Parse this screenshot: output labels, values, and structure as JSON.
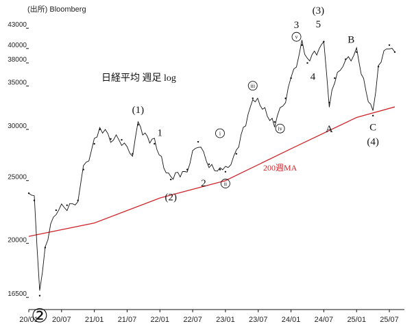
{
  "source_label": "(出所) Bloomberg",
  "chart_data": {
    "type": "line",
    "title": "日経平均 週足 log",
    "x_axis": {
      "ticks": [
        "20/01",
        "20/07",
        "21/01",
        "21/07",
        "22/01",
        "22/07",
        "23/01",
        "23/07",
        "24/01",
        "24/07",
        "25/01",
        "25/07"
      ],
      "range": [
        "2020/01",
        "2025/08"
      ]
    },
    "y_axis": {
      "scale": "log",
      "ticks": [
        16500,
        20000,
        25000,
        30000,
        35000,
        38000,
        40000,
        43000
      ],
      "range": [
        15800,
        45500
      ]
    },
    "grid": false,
    "series": [
      {
        "kind": "weekly-price",
        "color": "#111111",
        "points": [
          {
            "t": "2020/01",
            "v": 23900
          },
          {
            "t": "2020/02",
            "v": 23300
          },
          {
            "t": "2020/03",
            "v": 16600
          },
          {
            "t": "2020/04",
            "v": 19700
          },
          {
            "t": "2020/06",
            "v": 22500
          },
          {
            "t": "2020/08",
            "v": 22900
          },
          {
            "t": "2020/10",
            "v": 23300
          },
          {
            "t": "2020/11",
            "v": 26000
          },
          {
            "t": "2021/01",
            "v": 28500
          },
          {
            "t": "2021/02",
            "v": 30000
          },
          {
            "t": "2021/04",
            "v": 29000
          },
          {
            "t": "2021/06",
            "v": 28900
          },
          {
            "t": "2021/08",
            "v": 27500
          },
          {
            "t": "2021/09",
            "v": 30500
          },
          {
            "t": "2021/12",
            "v": 28500
          },
          {
            "t": "2022/03",
            "v": 25100
          },
          {
            "t": "2022/06",
            "v": 26000
          },
          {
            "t": "2022/08",
            "v": 28700
          },
          {
            "t": "2022/10",
            "v": 26500
          },
          {
            "t": "2022/12",
            "v": 26000
          },
          {
            "t": "2023/01",
            "v": 25800
          },
          {
            "t": "2023/03",
            "v": 27500
          },
          {
            "t": "2023/06",
            "v": 33500
          },
          {
            "t": "2023/10",
            "v": 30800
          },
          {
            "t": "2023/12",
            "v": 33500
          },
          {
            "t": "2024/01",
            "v": 36000
          },
          {
            "t": "2024/03",
            "v": 40500
          },
          {
            "t": "2024/04",
            "v": 38000
          },
          {
            "t": "2024/07",
            "v": 41000
          },
          {
            "t": "2024/08",
            "v": 33000
          },
          {
            "t": "2024/09",
            "v": 36000
          },
          {
            "t": "2024/11",
            "v": 38500
          },
          {
            "t": "2025/01",
            "v": 39500
          },
          {
            "t": "2025/04",
            "v": 31500
          },
          {
            "t": "2025/05",
            "v": 37500
          },
          {
            "t": "2025/07",
            "v": 40500
          },
          {
            "t": "2025/08",
            "v": 39500
          }
        ]
      },
      {
        "name": "200週MA",
        "color": "#d0262c",
        "points": [
          {
            "t": "2020/01",
            "v": 20500
          },
          {
            "t": "2021/01",
            "v": 21500
          },
          {
            "t": "2022/01",
            "v": 23500
          },
          {
            "t": "2023/01",
            "v": 25000
          },
          {
            "t": "2024/01",
            "v": 28000
          },
          {
            "t": "2025/01",
            "v": 31300
          },
          {
            "t": "2025/08",
            "v": 32500
          }
        ]
      }
    ],
    "annotations": [
      {
        "text": "②",
        "t": "2020/03",
        "v": 15100,
        "style": "big-circle"
      },
      {
        "text": "(1)",
        "t": "2021/09",
        "v": 31800,
        "style": "wave"
      },
      {
        "text": "1",
        "t": "2022/01",
        "v": 29300,
        "style": "wave"
      },
      {
        "text": "(2)",
        "t": "2022/03",
        "v": 23300,
        "style": "wave"
      },
      {
        "text": "2",
        "t": "2022/09",
        "v": 24500,
        "style": "wave"
      },
      {
        "text": "i",
        "t": "2022/12",
        "v": 29300,
        "style": "circle"
      },
      {
        "text": "ii",
        "t": "2023/01",
        "v": 24500,
        "style": "circle"
      },
      {
        "text": "iii",
        "t": "2023/06",
        "v": 34700,
        "style": "circle"
      },
      {
        "text": "iv",
        "t": "2023/11",
        "v": 29800,
        "style": "circle"
      },
      {
        "text": "3",
        "t": "2024/02",
        "v": 43000,
        "style": "wave"
      },
      {
        "text": "v",
        "t": "2024/02",
        "v": 41300,
        "style": "circle"
      },
      {
        "text": "(3)",
        "t": "2024/06",
        "v": 45300,
        "style": "wave"
      },
      {
        "text": "5",
        "t": "2024/06",
        "v": 43100,
        "style": "wave"
      },
      {
        "text": "4",
        "t": "2024/05",
        "v": 35800,
        "style": "wave"
      },
      {
        "text": "A",
        "t": "2024/08",
        "v": 29700,
        "style": "wave"
      },
      {
        "text": "B",
        "t": "2024/12",
        "v": 40800,
        "style": "wave"
      },
      {
        "text": "C",
        "t": "2025/04",
        "v": 29900,
        "style": "wave"
      },
      {
        "text": "(4)",
        "t": "2025/04",
        "v": 28400,
        "style": "wave"
      }
    ],
    "series_label": {
      "text": "200週MA",
      "t": "2023/11",
      "v": 25900
    }
  }
}
